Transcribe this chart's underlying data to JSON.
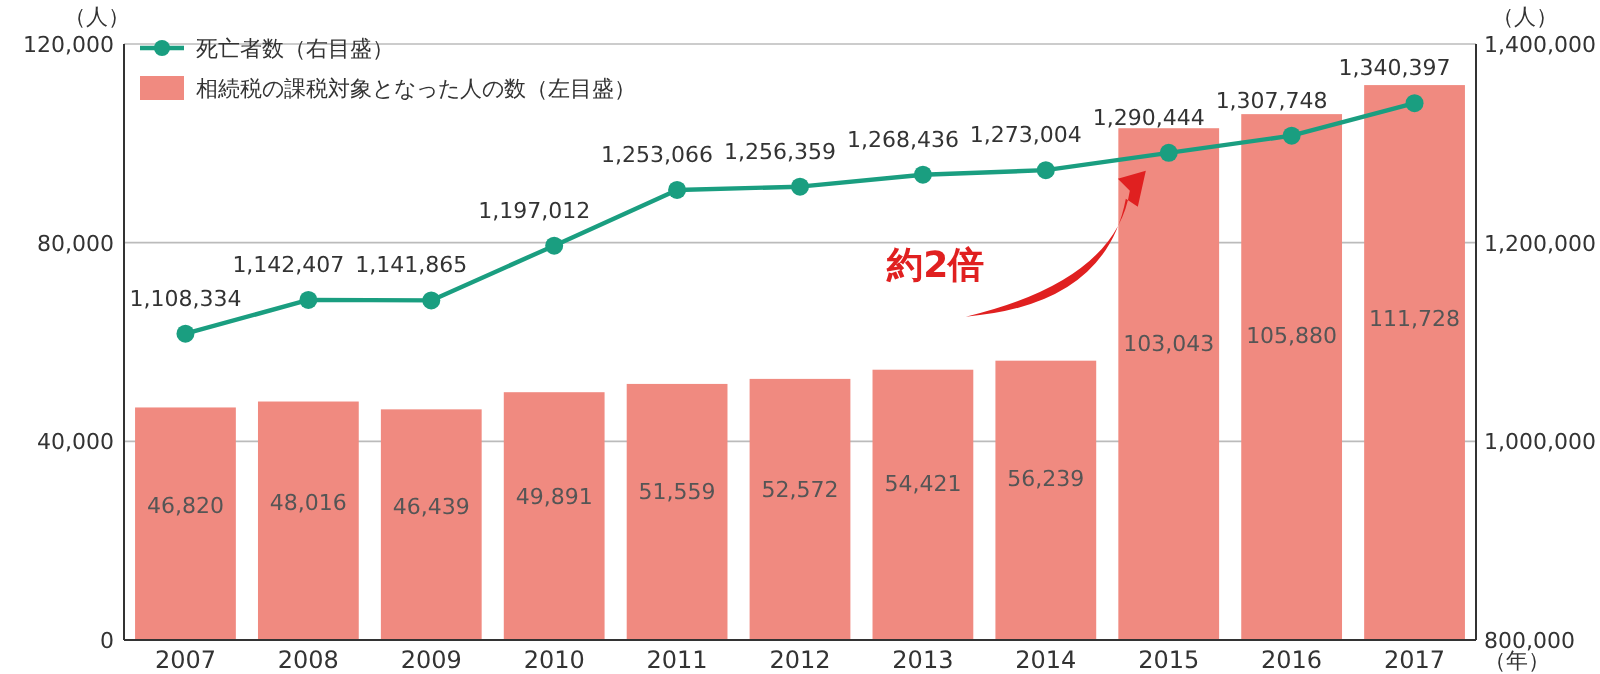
{
  "chart_data": {
    "type": "bar",
    "categories": [
      "2007",
      "2008",
      "2009",
      "2010",
      "2011",
      "2012",
      "2013",
      "2014",
      "2015",
      "2016",
      "2017"
    ],
    "ylabel": "（人）",
    "y2label": "（人）",
    "xlabel": "（年）",
    "ylim": [
      0,
      120000
    ],
    "yticks": [
      {
        "value": 0,
        "label": "0"
      },
      {
        "value": 40000,
        "label": "40,000"
      },
      {
        "value": 80000,
        "label": "80,000"
      },
      {
        "value": 120000,
        "label": "120,000"
      }
    ],
    "y2lim": [
      800000,
      1400000
    ],
    "y2ticks": [
      {
        "value": 800000,
        "label": "800,000"
      },
      {
        "value": 1000000,
        "label": "1,000,000"
      },
      {
        "value": 1200000,
        "label": "1,200,000"
      },
      {
        "value": 1400000,
        "label": "1,400,000"
      }
    ],
    "grid": "y",
    "legend": "top left",
    "series": [
      {
        "name": "死亡者数（右目盛）",
        "type": "line",
        "axis": "y2",
        "color": "#1a9e80",
        "marker": "circle",
        "values": [
          1108334,
          1142407,
          1141865,
          1197012,
          1253066,
          1256359,
          1268436,
          1273004,
          1290444,
          1307748,
          1340397
        ],
        "value_labels": [
          "1,108,334",
          "1,142,407",
          "1,141,865",
          "1,197,012",
          "1,253,066",
          "1,256,359",
          "1,268,436",
          "1,273,004",
          "1,290,444",
          "1,307,748",
          "1,340,397"
        ]
      },
      {
        "name": "相続税の課税対象となった人の数（左目盛）",
        "color": "#f08a80",
        "values": [
          46820,
          48016,
          46439,
          49891,
          51559,
          52572,
          54421,
          56239,
          103043,
          105880,
          111728
        ],
        "value_labels": [
          "46,820",
          "48,016",
          "46,439",
          "49,891",
          "51,559",
          "52,572",
          "54,421",
          "56,239",
          "103,043",
          "105,880",
          "111,728"
        ]
      }
    ],
    "annotations": [
      "約2倍"
    ]
  }
}
